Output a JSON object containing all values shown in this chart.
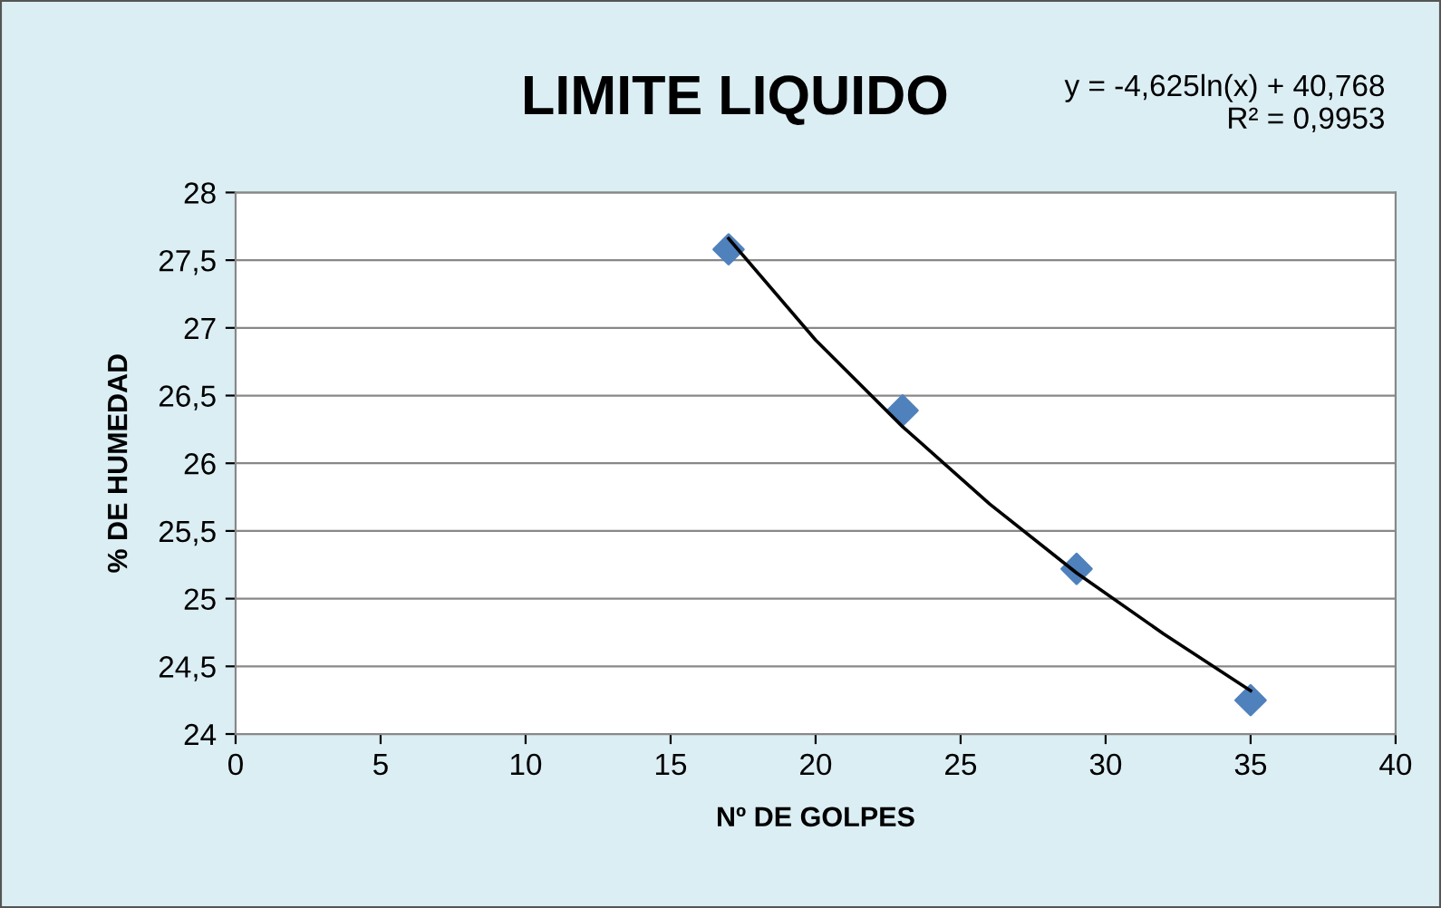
{
  "chart_data": {
    "type": "scatter",
    "title": "LIMITE LIQUIDO",
    "xlabel": "Nº DE GOLPES",
    "ylabel": "% DE HUMEDAD",
    "annotations": [
      "y = -4,625ln(x) + 40,768\nR² = 0,9953"
    ],
    "marker": "diamond",
    "grid": "y",
    "legend": false,
    "series": [
      {
        "color": "#4f81bd",
        "x": [
          17,
          23,
          29,
          35
        ],
        "values": [
          27.58,
          26.39,
          25.22,
          24.25
        ]
      },
      {
        "type": "line",
        "color": "#000000",
        "marker": "none",
        "line_style": "solid",
        "x": [
          17,
          20,
          23,
          26,
          29,
          32,
          35
        ],
        "values": [
          27.66,
          26.91,
          26.27,
          25.7,
          25.19,
          24.74,
          24.32
        ]
      }
    ],
    "xlim": [
      0,
      40
    ],
    "xticks": [
      0,
      5,
      10,
      15,
      20,
      25,
      30,
      35,
      40
    ],
    "ylim": [
      24,
      28
    ],
    "yticks": [
      24,
      {
        "value": 24.5,
        "label": "24,5"
      },
      25,
      {
        "value": 25.5,
        "label": "25,5"
      },
      26,
      {
        "value": 26.5,
        "label": "26,5"
      },
      27,
      {
        "value": 27.5,
        "label": "27,5"
      },
      28
    ]
  }
}
